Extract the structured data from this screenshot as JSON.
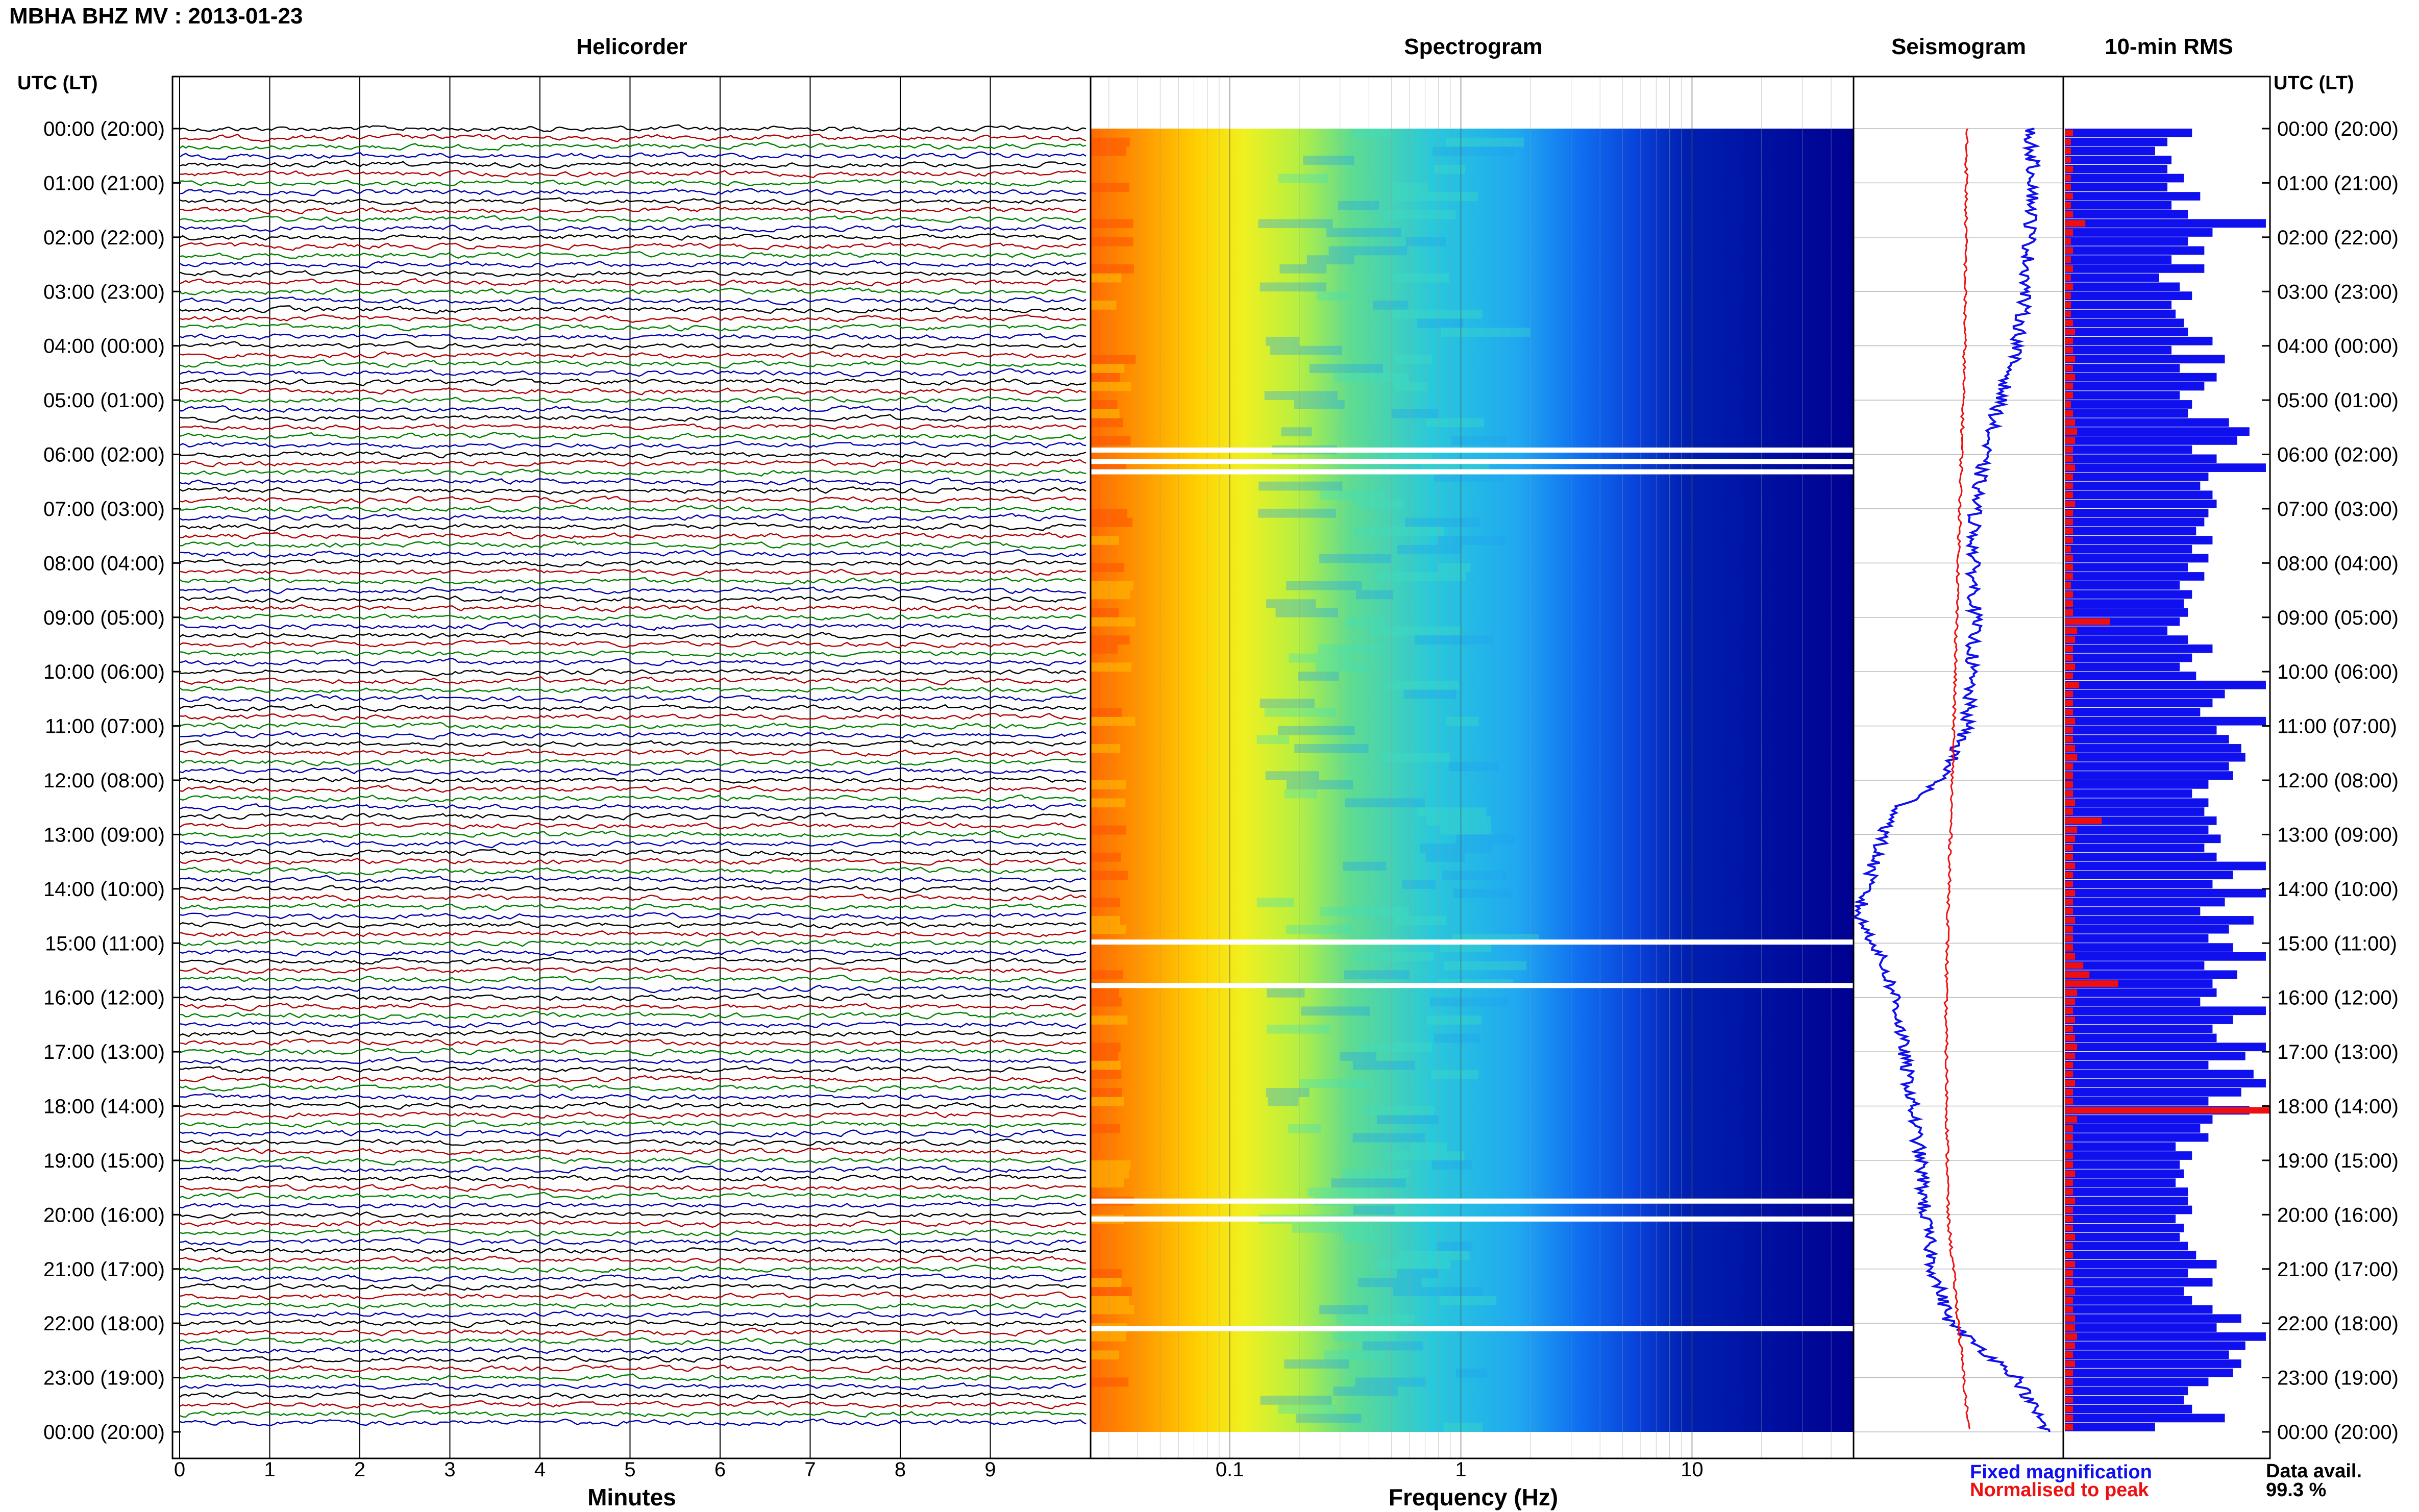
{
  "title": "MBHA BHZ MV : 2013-01-23",
  "panels": {
    "helicorder": "Helicorder",
    "spectrogram": "Spectrogram",
    "seismogram": "Seismogram",
    "rms": "10-min RMS"
  },
  "axis_labels": {
    "time_left": "UTC (LT)",
    "time_right": "UTC (LT)",
    "minutes": "Minutes",
    "frequency": "Frequency (Hz)"
  },
  "legend": {
    "fixed": "Fixed magnification",
    "normalised": "Normalised to peak",
    "fixed_color": "#1010ee",
    "normalised_color": "#ee1010"
  },
  "data_availability": {
    "label": "Data avail.",
    "value": "99.3 %"
  },
  "colors": {
    "trace_cycle": [
      "#000000",
      "#b00000",
      "#008000",
      "#0000b0"
    ],
    "spectrogram_scale": [
      "#ff6a00",
      "#ffb000",
      "#ffe000",
      "#c8ff30",
      "#60e0a0",
      "#20c8e8",
      "#1080ff",
      "#0030d0",
      "#000090"
    ],
    "rms_fixed": "#1010ee",
    "rms_normalised": "#ee1010"
  },
  "chart_data": [
    {
      "type": "line",
      "title": "Helicorder",
      "xlabel": "Minutes",
      "ylabel": "UTC (LT)",
      "xlim": [
        0,
        10
      ],
      "x_ticks": [
        0,
        1,
        2,
        3,
        4,
        5,
        6,
        7,
        8,
        9
      ],
      "rows": 144,
      "row_minutes": 10,
      "y_ticks": [
        "00:00 (20:00)",
        "01:00 (21:00)",
        "02:00 (22:00)",
        "03:00 (23:00)",
        "04:00 (00:00)",
        "05:00 (01:00)",
        "06:00 (02:00)",
        "07:00 (03:00)",
        "08:00 (04:00)",
        "09:00 (05:00)",
        "10:00 (06:00)",
        "11:00 (07:00)",
        "12:00 (08:00)",
        "13:00 (09:00)",
        "14:00 (10:00)",
        "15:00 (11:00)",
        "16:00 (12:00)",
        "17:00 (13:00)",
        "18:00 (14:00)",
        "19:00 (15:00)",
        "20:00 (16:00)",
        "21:00 (17:00)",
        "22:00 (18:00)",
        "23:00 (19:00)",
        "00:00 (20:00)"
      ],
      "grid": true
    },
    {
      "type": "heatmap",
      "title": "Spectrogram",
      "xlabel": "Frequency (Hz)",
      "x_scale": "log",
      "xlim": [
        0.025,
        50
      ],
      "x_ticks": [
        0.1,
        1,
        10
      ],
      "x_tick_labels": [
        "0.1",
        "1",
        "10"
      ],
      "ylim_hours": [
        0,
        24
      ],
      "data_gaps_utc_hours": [
        5.92,
        6.13,
        6.32,
        14.98,
        15.78,
        19.75,
        20.08,
        22.1
      ],
      "grid": true
    },
    {
      "type": "line",
      "title": "Seismogram",
      "series": [
        {
          "name": "Fixed magnification",
          "x_hours": [
            0,
            1,
            2,
            3,
            4,
            5,
            6,
            7,
            8,
            9,
            10,
            11,
            12,
            12.5,
            13,
            14,
            14.5,
            15,
            16,
            17,
            18,
            19,
            20,
            21,
            22,
            23,
            24
          ],
          "position": [
            0.84,
            0.86,
            0.84,
            0.82,
            0.78,
            0.7,
            0.62,
            0.58,
            0.57,
            0.58,
            0.56,
            0.54,
            0.42,
            0.22,
            0.14,
            0.06,
            0.02,
            0.1,
            0.2,
            0.24,
            0.28,
            0.32,
            0.34,
            0.38,
            0.46,
            0.78,
            0.92
          ]
        },
        {
          "name": "Normalised to peak",
          "x_hours": [
            0,
            4,
            8,
            12,
            16,
            20,
            22,
            24
          ],
          "position": [
            0.54,
            0.53,
            0.5,
            0.47,
            0.44,
            0.45,
            0.5,
            0.55
          ]
        }
      ],
      "grid": true
    },
    {
      "type": "bar",
      "title": "10-min RMS",
      "bin_minutes": 10,
      "units": "relative",
      "y_ticks": [
        "00:00 (20:00)",
        "01:00 (21:00)",
        "02:00 (22:00)",
        "03:00 (23:00)",
        "04:00 (00:00)",
        "05:00 (01:00)",
        "06:00 (02:00)",
        "07:00 (03:00)",
        "08:00 (04:00)",
        "09:00 (05:00)",
        "10:00 (06:00)",
        "11:00 (07:00)",
        "12:00 (08:00)",
        "13:00 (09:00)",
        "14:00 (10:00)",
        "15:00 (11:00)",
        "16:00 (12:00)",
        "17:00 (13:00)",
        "18:00 (14:00)",
        "19:00 (15:00)",
        "20:00 (16:00)",
        "21:00 (17:00)",
        "22:00 (18:00)",
        "23:00 (19:00)",
        "00:00 (20:00)"
      ],
      "series": [
        {
          "name": "Fixed magnification",
          "values": [
            0.62,
            0.5,
            0.44,
            0.52,
            0.5,
            0.58,
            0.5,
            0.66,
            0.52,
            0.6,
            0.98,
            0.72,
            0.6,
            0.68,
            0.52,
            0.68,
            0.46,
            0.56,
            0.62,
            0.52,
            0.54,
            0.58,
            0.6,
            0.72,
            0.52,
            0.78,
            0.56,
            0.74,
            0.68,
            0.56,
            0.62,
            0.6,
            0.8,
            0.9,
            0.84,
            0.62,
            0.74,
            0.98,
            0.7,
            0.66,
            0.72,
            0.74,
            0.7,
            0.68,
            0.64,
            0.72,
            0.62,
            0.7,
            0.6,
            0.68,
            0.56,
            0.62,
            0.58,
            0.6,
            0.56,
            0.5,
            0.6,
            0.72,
            0.62,
            0.56,
            0.64,
            0.98,
            0.78,
            0.72,
            0.66,
            0.98,
            0.74,
            0.8,
            0.86,
            0.88,
            0.8,
            0.82,
            0.7,
            0.62,
            0.7,
            0.68,
            0.74,
            0.7,
            0.76,
            0.68,
            0.74,
            0.98,
            0.82,
            0.72,
            0.98,
            0.78,
            0.66,
            0.92,
            0.8,
            0.7,
            0.82,
            0.98,
            0.68,
            0.84,
            0.72,
            0.74,
            0.66,
            0.98,
            0.82,
            0.72,
            0.74,
            0.98,
            0.88,
            0.7,
            0.92,
            0.98,
            0.86,
            0.7,
            0.9,
            0.72,
            0.66,
            0.7,
            0.54,
            0.62,
            0.56,
            0.58,
            0.54,
            0.6,
            0.6,
            0.62,
            0.54,
            0.58,
            0.56,
            0.6,
            0.64,
            0.74,
            0.6,
            0.72,
            0.58,
            0.62,
            0.72,
            0.86,
            0.74,
            0.98,
            0.88,
            0.8,
            0.86,
            0.82,
            0.7,
            0.6,
            0.58,
            0.62,
            0.78,
            0.44
          ]
        },
        {
          "name": "Normalised to peak",
          "values": [
            0.04,
            0.03,
            0.03,
            0.03,
            0.04,
            0.03,
            0.03,
            0.04,
            0.03,
            0.04,
            0.1,
            0.04,
            0.03,
            0.04,
            0.03,
            0.04,
            0.03,
            0.04,
            0.03,
            0.03,
            0.03,
            0.04,
            0.05,
            0.04,
            0.04,
            0.05,
            0.04,
            0.05,
            0.04,
            0.04,
            0.03,
            0.04,
            0.05,
            0.06,
            0.05,
            0.04,
            0.04,
            0.05,
            0.04,
            0.04,
            0.04,
            0.05,
            0.04,
            0.04,
            0.04,
            0.04,
            0.03,
            0.04,
            0.04,
            0.04,
            0.03,
            0.04,
            0.04,
            0.04,
            0.22,
            0.06,
            0.05,
            0.04,
            0.04,
            0.05,
            0.04,
            0.07,
            0.04,
            0.04,
            0.04,
            0.05,
            0.04,
            0.04,
            0.05,
            0.06,
            0.04,
            0.04,
            0.04,
            0.04,
            0.05,
            0.04,
            0.18,
            0.06,
            0.05,
            0.04,
            0.04,
            0.05,
            0.04,
            0.04,
            0.05,
            0.04,
            0.04,
            0.05,
            0.04,
            0.04,
            0.04,
            0.05,
            0.09,
            0.12,
            0.26,
            0.06,
            0.05,
            0.04,
            0.05,
            0.04,
            0.05,
            0.06,
            0.05,
            0.04,
            0.04,
            0.05,
            0.04,
            0.04,
            1.0,
            0.06,
            0.04,
            0.04,
            0.04,
            0.04,
            0.04,
            0.05,
            0.04,
            0.04,
            0.05,
            0.04,
            0.04,
            0.04,
            0.05,
            0.04,
            0.04,
            0.05,
            0.04,
            0.04,
            0.05,
            0.04,
            0.04,
            0.05,
            0.05,
            0.06,
            0.05,
            0.04,
            0.05,
            0.04,
            0.04,
            0.04,
            0.04,
            0.04,
            0.04,
            0.04
          ]
        }
      ],
      "grid": true
    }
  ]
}
